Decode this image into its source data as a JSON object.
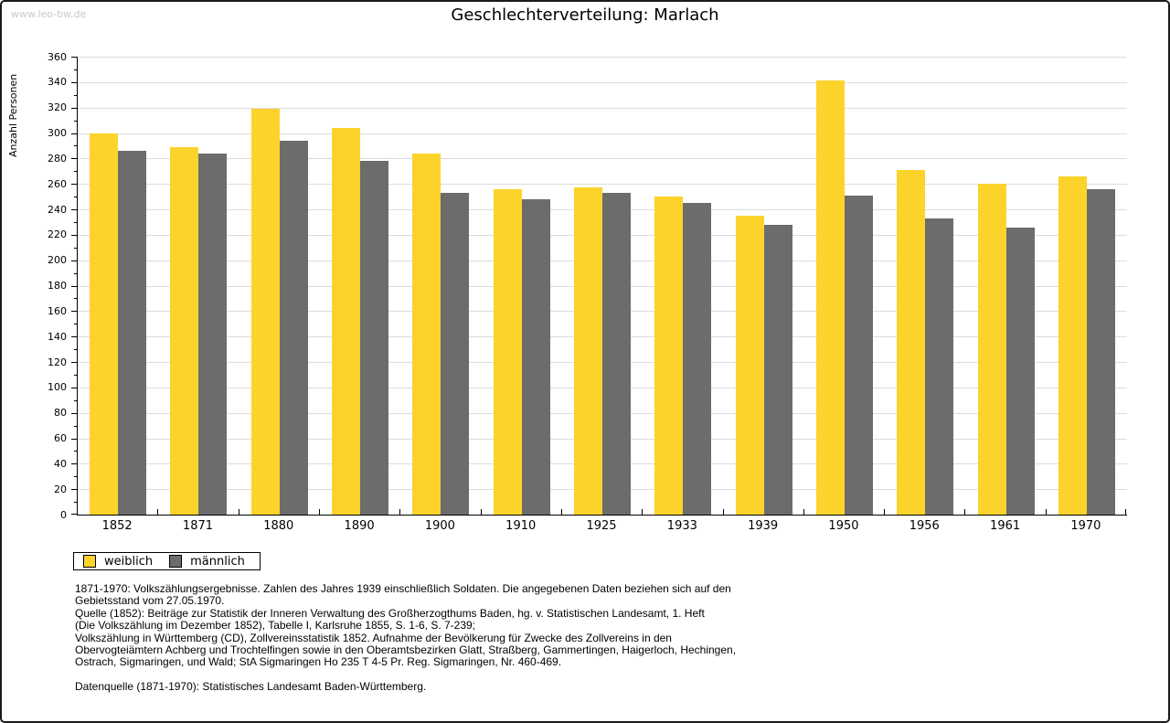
{
  "watermark": "www.leo-bw.de",
  "title": "Geschlechterverteilung: Marlach",
  "chart_data": {
    "type": "bar",
    "title": "Geschlechterverteilung: Marlach",
    "xlabel": "",
    "ylabel": "Anzahl Personen",
    "ylim": [
      0,
      360
    ],
    "ytick_step": 20,
    "yminor_step": 10,
    "grid": "horizontal-gridlines-on",
    "legend_position": "bottom-left",
    "categories": [
      "1852",
      "1871",
      "1880",
      "1890",
      "1900",
      "1910",
      "1925",
      "1933",
      "1939",
      "1950",
      "1956",
      "1961",
      "1970"
    ],
    "series": [
      {
        "name": "weiblich",
        "color": "#FCD32B",
        "values": [
          300,
          289,
          319,
          304,
          284,
          256,
          257,
          250,
          235,
          341,
          271,
          260,
          266
        ]
      },
      {
        "name": "männlich",
        "color": "#6C6C6C",
        "values": [
          286,
          284,
          294,
          278,
          253,
          248,
          253,
          245,
          228,
          251,
          233,
          226,
          256
        ]
      }
    ]
  },
  "colors": {
    "weiblich": "#FCD32B",
    "männlich": "#6C6C6C",
    "gridline": "#dcdcdc",
    "axis": "#000000",
    "watermark": "#c9c9c9"
  },
  "footnotes": {
    "lines": [
      "1871-1970: Volkszählungsergebnisse. Zahlen des Jahres 1939 einschließlich Soldaten. Die angegebenen Daten beziehen sich auf den",
      "Gebietsstand vom 27.05.1970.",
      "Quelle (1852): Beiträge zur Statistik der Inneren Verwaltung des Großherzogthums Baden, hg. v. Statistischen Landesamt, 1. Heft",
      "(Die Volkszählung im Dezember 1852), Tabelle I, Karlsruhe 1855, S. 1-6, S. 7-239;",
      "Volkszählung in Württemberg (CD), Zollvereinsstatistik 1852. Aufnahme der Bevölkerung für Zwecke des Zollvereins in den",
      "Obervogteiämtern Achberg und Trochtelfingen sowie in den Oberamtsbezirken Glatt, Straßberg, Gammertingen, Haigerloch, Hechingen,",
      "Ostrach, Sigmaringen, und Wald; StA Sigmaringen Ho 235 T 4-5 Pr. Reg. Sigmaringen, Nr. 460-469.",
      "",
      "Datenquelle (1871-1970): Statistisches Landesamt Baden-Württemberg."
    ]
  }
}
